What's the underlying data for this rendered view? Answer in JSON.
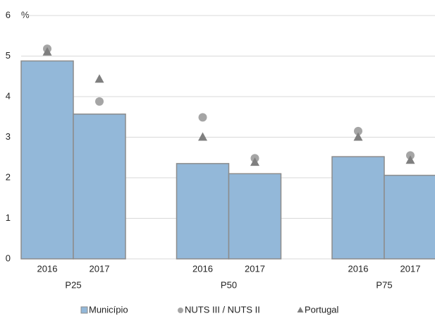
{
  "chart_data": {
    "type": "bar",
    "y_label": "%",
    "categories": [
      "2016",
      "2017",
      "2016",
      "2017",
      "2016",
      "2017"
    ],
    "groups": [
      "P25",
      "P50",
      "P75"
    ],
    "series": [
      {
        "name": "Município",
        "marker": "bar",
        "color": "#93b8d9",
        "values": [
          4.88,
          3.57,
          2.35,
          2.1,
          2.52,
          2.06
        ]
      },
      {
        "name": "NUTS III / NUTS II",
        "marker": "circle",
        "color": "#a5a5a5",
        "values": [
          5.18,
          3.88,
          3.49,
          2.48,
          3.15,
          2.55
        ]
      },
      {
        "name": "Portugal",
        "marker": "triangle",
        "color": "#7f7f7f",
        "values": [
          5.1,
          4.43,
          3.0,
          2.38,
          3.0,
          2.43
        ]
      }
    ],
    "ylim": [
      0,
      6
    ],
    "yticks": [
      0,
      1,
      2,
      3,
      4,
      5,
      6
    ],
    "grid": true,
    "legend": "bottom"
  }
}
